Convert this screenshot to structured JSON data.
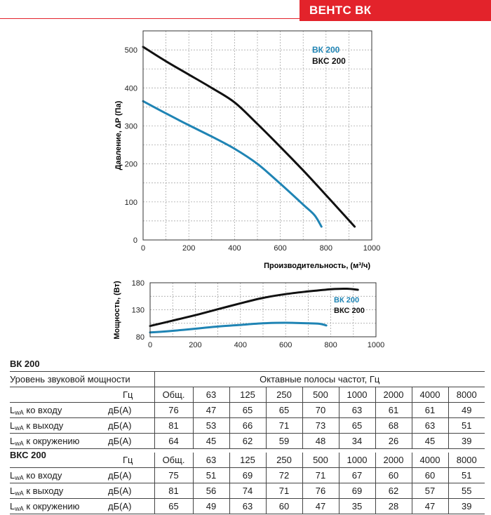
{
  "header": {
    "title": "ВЕНТС ВК"
  },
  "chart_data": [
    {
      "type": "line",
      "title": "",
      "xlabel": "Производительность, (м³/ч)",
      "ylabel": "Давление, ΔP (Па)",
      "xlim": [
        0,
        1000
      ],
      "ylim": [
        0,
        550
      ],
      "xticks": [
        0,
        200,
        400,
        600,
        800,
        1000
      ],
      "yticks": [
        0,
        100,
        200,
        300,
        400,
        500
      ],
      "grid": true,
      "legend": "top-right",
      "series": [
        {
          "name": "ВК 200",
          "color": "#1f84b4",
          "x": [
            0,
            100,
            200,
            300,
            400,
            500,
            600,
            700,
            750,
            780
          ],
          "y": [
            365,
            333,
            302,
            272,
            240,
            200,
            148,
            93,
            65,
            35
          ]
        },
        {
          "name": "ВКС 200",
          "color": "#111111",
          "x": [
            0,
            100,
            200,
            300,
            400,
            500,
            600,
            700,
            800,
            880,
            925
          ],
          "y": [
            508,
            470,
            435,
            400,
            362,
            305,
            245,
            183,
            118,
            65,
            35
          ]
        }
      ]
    },
    {
      "type": "line",
      "title": "",
      "xlabel": "",
      "ylabel": "Мощность, (Вт)",
      "xlim": [
        0,
        1000
      ],
      "ylim": [
        80,
        180
      ],
      "xticks": [
        0,
        200,
        400,
        600,
        800,
        1000
      ],
      "yticks": [
        80,
        130,
        180
      ],
      "grid": true,
      "legend": "right",
      "series": [
        {
          "name": "ВК 200",
          "color": "#1f84b4",
          "x": [
            0,
            100,
            200,
            300,
            400,
            500,
            600,
            700,
            750,
            780
          ],
          "y": [
            88,
            91,
            95,
            99,
            102,
            105,
            106,
            105,
            104,
            101
          ]
        },
        {
          "name": "ВКС 200",
          "color": "#111111",
          "x": [
            0,
            100,
            200,
            300,
            400,
            500,
            600,
            700,
            800,
            870,
            920
          ],
          "y": [
            100,
            110,
            120,
            131,
            142,
            152,
            159,
            164,
            168,
            169,
            167
          ]
        }
      ]
    }
  ],
  "tables": [
    {
      "title": "ВК 200",
      "header_left": "Уровень звуковой мощности",
      "header_right": "Октавные полосы частот, Гц",
      "unit_header": "Гц",
      "columns": [
        "Общ.",
        "63",
        "125",
        "250",
        "500",
        "1000",
        "2000",
        "4000",
        "8000"
      ],
      "rows": [
        {
          "label_prefix": "L",
          "label_sub": "wA",
          "label_rest": " ко входу",
          "unit": "дБ(А)",
          "values": [
            "76",
            "47",
            "65",
            "65",
            "70",
            "63",
            "61",
            "61",
            "49"
          ]
        },
        {
          "label_prefix": "L",
          "label_sub": "wA",
          "label_rest": " к выходу",
          "unit": "дБ(А)",
          "values": [
            "81",
            "53",
            "66",
            "71",
            "73",
            "65",
            "68",
            "63",
            "51"
          ]
        },
        {
          "label_prefix": "L",
          "label_sub": "wA",
          "label_rest": " к окружению",
          "unit": "дБ(А)",
          "values": [
            "64",
            "45",
            "62",
            "59",
            "48",
            "34",
            "26",
            "45",
            "39"
          ]
        }
      ]
    },
    {
      "title": "ВКС 200",
      "unit_header": "Гц",
      "columns": [
        "Общ.",
        "63",
        "125",
        "250",
        "500",
        "1000",
        "2000",
        "4000",
        "8000"
      ],
      "rows": [
        {
          "label_prefix": "L",
          "label_sub": "wA",
          "label_rest": " ко входу",
          "unit": "дБ(А)",
          "values": [
            "75",
            "51",
            "69",
            "72",
            "71",
            "67",
            "60",
            "60",
            "51"
          ]
        },
        {
          "label_prefix": "L",
          "label_sub": "wA",
          "label_rest": " к выходу",
          "unit": "дБ(А)",
          "values": [
            "81",
            "56",
            "74",
            "71",
            "76",
            "69",
            "62",
            "57",
            "55"
          ]
        },
        {
          "label_prefix": "L",
          "label_sub": "wA",
          "label_rest": " к окружению",
          "unit": "дБ(А)",
          "values": [
            "65",
            "49",
            "63",
            "60",
            "47",
            "35",
            "28",
            "47",
            "39"
          ]
        }
      ]
    }
  ]
}
